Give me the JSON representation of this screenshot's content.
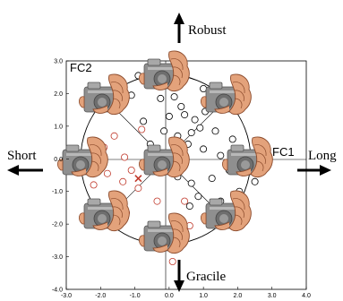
{
  "chart_data": {
    "type": "scatter",
    "xlabel": "FC1",
    "ylabel": "FC2",
    "xlim": [
      -3.0,
      4.0
    ],
    "ylim": [
      -4.0,
      3.0
    ],
    "x_ticks": [
      "-3.0",
      "-2.0",
      "-1.0",
      "0.0",
      "1.0",
      "2.0",
      "3.0",
      "4.0"
    ],
    "y_ticks": [
      "3.0",
      "2.0",
      "1.0",
      "0.0",
      "-1.0",
      "-2.0",
      "-3.0",
      "-4.0"
    ],
    "direction_labels": {
      "top": "Robust",
      "bottom": "Gracile",
      "left": "Short",
      "right": "Long"
    },
    "overlay": {
      "type": "hand-grip-illustration",
      "count": 9,
      "layout": "ring of 8 around center"
    },
    "series": [
      {
        "color": "#000000",
        "marker": "open-circle",
        "points": [
          [
            -0.9,
            2.55
          ],
          [
            -0.5,
            2.35
          ],
          [
            -1.1,
            1.95
          ],
          [
            -0.25,
            1.85
          ],
          [
            0.15,
            1.9
          ],
          [
            0.35,
            1.6
          ],
          [
            0.0,
            1.3
          ],
          [
            0.45,
            1.35
          ],
          [
            0.75,
            1.2
          ],
          [
            1.05,
            1.45
          ],
          [
            1.35,
            0.85
          ],
          [
            0.65,
            0.8
          ],
          [
            0.25,
            0.7
          ],
          [
            -0.15,
            0.85
          ],
          [
            0.55,
            0.45
          ],
          [
            1.0,
            0.3
          ],
          [
            1.5,
            0.1
          ],
          [
            2.15,
            0.05
          ],
          [
            2.45,
            -0.15
          ],
          [
            1.75,
            -0.35
          ],
          [
            1.25,
            -0.6
          ],
          [
            0.65,
            -0.75
          ],
          [
            0.25,
            -0.55
          ],
          [
            0.85,
            -1.15
          ],
          [
            1.5,
            -1.3
          ],
          [
            2.05,
            -1.0
          ],
          [
            2.5,
            -0.7
          ],
          [
            1.2,
            -1.7
          ],
          [
            0.6,
            -1.45
          ],
          [
            0.05,
            -0.25
          ],
          [
            -0.2,
            0.15
          ],
          [
            -0.55,
            0.45
          ],
          [
            0.9,
            0.95
          ],
          [
            1.85,
            0.6
          ],
          [
            0.35,
            -1.95
          ],
          [
            1.0,
            2.15
          ],
          [
            -0.75,
            1.15
          ],
          [
            2.85,
            0.3
          ]
        ]
      },
      {
        "color": "#c0392b",
        "marker": "open-circle",
        "points": [
          [
            -1.6,
            0.7
          ],
          [
            -0.8,
            0.9
          ],
          [
            -0.45,
            0.3
          ],
          [
            -1.3,
            0.05
          ],
          [
            -2.1,
            -0.05
          ],
          [
            -2.5,
            -0.3
          ],
          [
            -1.8,
            -0.45
          ],
          [
            -1.1,
            -0.35
          ],
          [
            -0.6,
            -0.2
          ],
          [
            -0.9,
            -0.9
          ],
          [
            -1.55,
            -1.1
          ],
          [
            -2.2,
            -0.8
          ],
          [
            -0.35,
            -1.3
          ],
          [
            0.45,
            -1.3
          ],
          [
            -1.25,
            -1.65
          ],
          [
            0.6,
            -2.05
          ],
          [
            0.1,
            -3.15
          ],
          [
            -2.65,
            0.1
          ],
          [
            -1.9,
            0.35
          ],
          [
            -1.35,
            -0.7
          ]
        ]
      }
    ],
    "annotations": [
      {
        "type": "cross",
        "color": "#c0392b",
        "x": -0.9,
        "y": -0.6
      }
    ]
  }
}
